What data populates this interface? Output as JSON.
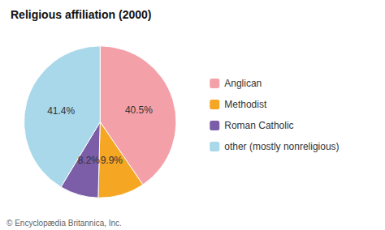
{
  "chart_data": {
    "type": "pie",
    "title": "Religious affiliation (2000)",
    "categories": [
      "Anglican",
      "Methodist",
      "Roman Catholic",
      "other (mostly nonreligious)"
    ],
    "values": [
      40.5,
      9.9,
      8.2,
      41.4
    ],
    "value_labels": [
      "40.5%",
      "9.9%",
      "8.2%",
      "41.4%"
    ],
    "colors": [
      "#f4a0a8",
      "#f5a623",
      "#7b5ea7",
      "#a8d8ea"
    ],
    "data_labels": true,
    "legend": "right",
    "annotations": [
      "© Encyclopædia Britannica, Inc."
    ]
  }
}
